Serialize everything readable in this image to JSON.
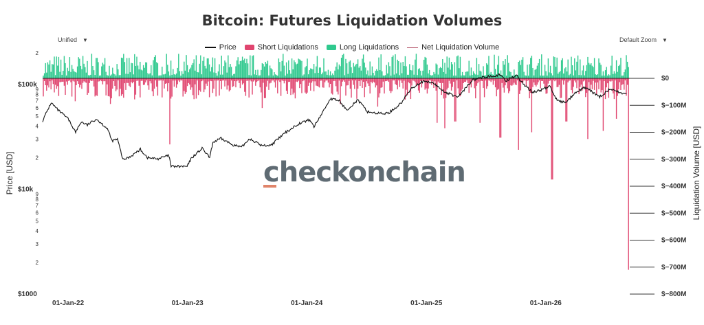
{
  "header": {
    "title": "Bitcoin: Futures Liquidation Volumes",
    "left_control_label": "Unified",
    "right_control_label": "Default Zoom",
    "caret": "▼"
  },
  "watermark": "checkonchain",
  "colors": {
    "price": "#111111",
    "short": "#e0456f",
    "long": "#2fc98e",
    "net": "#b04a60"
  },
  "chart_data": {
    "type": "area",
    "title": "Bitcoin: Futures Liquidation Volumes",
    "legend_position": "top-center",
    "grid": false,
    "legend": [
      "Price",
      "Short Liquidations",
      "Long Liquidations",
      "Net Liquidation Volume"
    ],
    "x_ticks": [
      "01-Jan-22",
      "01-Jan-23",
      "01-Jan-24",
      "01-Jan-25",
      "01-Jan-26"
    ],
    "x_range": [
      "2021-10-15",
      "2026-09-15"
    ],
    "y_left": {
      "label": "Price [USD]",
      "scale": "log",
      "range": [
        1000,
        200000
      ],
      "ticks": [
        {
          "v": 200000,
          "t": "2"
        },
        {
          "v": 100000,
          "t": "$100k"
        },
        {
          "v": 90000,
          "t": "9"
        },
        {
          "v": 80000,
          "t": "8"
        },
        {
          "v": 70000,
          "t": "7"
        },
        {
          "v": 60000,
          "t": "6"
        },
        {
          "v": 50000,
          "t": "5"
        },
        {
          "v": 40000,
          "t": "4"
        },
        {
          "v": 30000,
          "t": "3"
        },
        {
          "v": 20000,
          "t": "2"
        },
        {
          "v": 10000,
          "t": "$10k"
        },
        {
          "v": 9000,
          "t": "9"
        },
        {
          "v": 8000,
          "t": "8"
        },
        {
          "v": 7000,
          "t": "7"
        },
        {
          "v": 6000,
          "t": "6"
        },
        {
          "v": 5000,
          "t": "5"
        },
        {
          "v": 4000,
          "t": "4"
        },
        {
          "v": 3000,
          "t": "3"
        },
        {
          "v": 2000,
          "t": "2"
        },
        {
          "v": 1000,
          "t": "$1000"
        }
      ]
    },
    "y_right": {
      "label": "Liquidation Volume [USD]",
      "range": [
        -800000000,
        0
      ],
      "ticks": [
        {
          "v": 0,
          "t": "$0"
        },
        {
          "v": -100000000,
          "t": "$−100M"
        },
        {
          "v": -200000000,
          "t": "$−200M"
        },
        {
          "v": -300000000,
          "t": "$−300M"
        },
        {
          "v": -400000000,
          "t": "$−400M"
        },
        {
          "v": -500000000,
          "t": "$−500M"
        },
        {
          "v": -600000000,
          "t": "$−600M"
        },
        {
          "v": -700000000,
          "t": "$−700M"
        },
        {
          "v": -800000000,
          "t": "$−800M"
        }
      ]
    },
    "price_series": {
      "name": "Price",
      "points": [
        [
          "2021-10-15",
          45000
        ],
        [
          "2021-11-10",
          67000
        ],
        [
          "2021-12-01",
          57000
        ],
        [
          "2022-01-01",
          47000
        ],
        [
          "2022-01-24",
          35000
        ],
        [
          "2022-02-10",
          44000
        ],
        [
          "2022-03-01",
          41000
        ],
        [
          "2022-03-28",
          47000
        ],
        [
          "2022-05-01",
          38000
        ],
        [
          "2022-05-15",
          29000
        ],
        [
          "2022-06-01",
          30000
        ],
        [
          "2022-06-18",
          19000
        ],
        [
          "2022-07-10",
          20500
        ],
        [
          "2022-08-10",
          24000
        ],
        [
          "2022-09-01",
          20000
        ],
        [
          "2022-10-01",
          19500
        ],
        [
          "2022-11-05",
          21000
        ],
        [
          "2022-11-12",
          16500
        ],
        [
          "2022-12-31",
          16500
        ],
        [
          "2023-01-14",
          20000
        ],
        [
          "2023-02-15",
          24500
        ],
        [
          "2023-03-10",
          20000
        ],
        [
          "2023-03-20",
          28000
        ],
        [
          "2023-04-14",
          30500
        ],
        [
          "2023-05-15",
          27000
        ],
        [
          "2023-06-15",
          25000
        ],
        [
          "2023-07-10",
          30500
        ],
        [
          "2023-08-17",
          26000
        ],
        [
          "2023-09-15",
          26500
        ],
        [
          "2023-10-24",
          34000
        ],
        [
          "2023-12-05",
          42000
        ],
        [
          "2024-01-10",
          46000
        ],
        [
          "2024-01-23",
          39500
        ],
        [
          "2024-02-15",
          52000
        ],
        [
          "2024-03-13",
          73000
        ],
        [
          "2024-04-10",
          70000
        ],
        [
          "2024-05-01",
          57000
        ],
        [
          "2024-06-05",
          71000
        ],
        [
          "2024-07-05",
          55000
        ],
        [
          "2024-08-05",
          53000
        ],
        [
          "2024-09-06",
          53000
        ],
        [
          "2024-10-15",
          66000
        ],
        [
          "2024-11-15",
          91000
        ],
        [
          "2024-12-17",
          106000
        ],
        [
          "2025-01-20",
          104000
        ],
        [
          "2025-02-28",
          84000
        ],
        [
          "2025-04-08",
          76000
        ],
        [
          "2025-05-22",
          110000
        ],
        [
          "2025-07-14",
          121000
        ],
        [
          "2025-08-14",
          123000
        ],
        [
          "2025-09-01",
          108000
        ],
        [
          "2025-10-06",
          125000
        ],
        [
          "2025-10-11",
          112000
        ],
        [
          "2025-11-21",
          84000
        ],
        [
          "2025-12-15",
          88000
        ],
        [
          "2026-01-14",
          96000
        ],
        [
          "2026-02-05",
          70000
        ],
        [
          "2026-03-01",
          67000
        ],
        [
          "2026-04-01",
          82000
        ],
        [
          "2026-05-01",
          94000
        ],
        [
          "2026-06-15",
          76000
        ],
        [
          "2026-07-15",
          90000
        ],
        [
          "2026-08-15",
          84000
        ],
        [
          "2026-09-05",
          81000
        ]
      ]
    },
    "liquidation_spikes": {
      "name": "Short Liquidations",
      "points": [
        [
          "2022-01-22",
          -85000000
        ],
        [
          "2022-05-10",
          -95000000
        ],
        [
          "2022-06-13",
          -65000000
        ],
        [
          "2022-11-09",
          -245000000
        ],
        [
          "2023-03-10",
          -70000000
        ],
        [
          "2023-08-17",
          -110000000
        ],
        [
          "2024-01-03",
          -45000000
        ],
        [
          "2024-03-19",
          -60000000
        ],
        [
          "2024-04-13",
          -95000000
        ],
        [
          "2024-08-05",
          -105000000
        ],
        [
          "2024-12-09",
          -45000000
        ],
        [
          "2025-02-03",
          -165000000
        ],
        [
          "2025-02-26",
          -185000000
        ],
        [
          "2025-03-30",
          -160000000
        ],
        [
          "2025-06-15",
          -165000000
        ],
        [
          "2025-08-15",
          -220000000
        ],
        [
          "2025-10-10",
          -265000000
        ],
        [
          "2025-11-20",
          -200000000
        ],
        [
          "2026-01-20",
          -375000000
        ],
        [
          "2026-03-05",
          -160000000
        ],
        [
          "2026-05-10",
          -225000000
        ],
        [
          "2026-06-25",
          -195000000
        ],
        [
          "2026-08-05",
          -150000000
        ],
        [
          "2026-09-13",
          -710000000
        ]
      ]
    }
  }
}
